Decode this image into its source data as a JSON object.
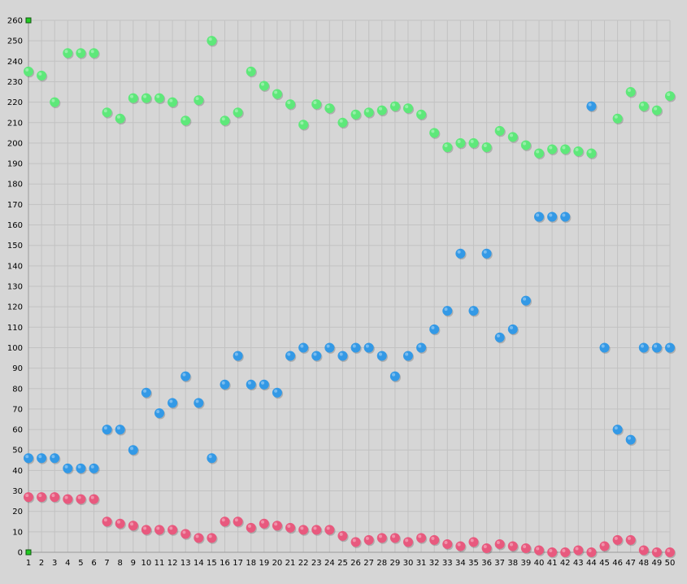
{
  "chart_data": {
    "type": "scatter",
    "title": "",
    "xlabel": "",
    "ylabel": "",
    "xlim": [
      1,
      50
    ],
    "ylim": [
      0,
      260
    ],
    "y_tick_step": 10,
    "grid": true,
    "legend": "none",
    "x": [
      1,
      2,
      3,
      4,
      5,
      6,
      7,
      8,
      9,
      10,
      11,
      12,
      13,
      14,
      15,
      16,
      17,
      18,
      19,
      20,
      21,
      22,
      23,
      24,
      25,
      26,
      27,
      28,
      29,
      30,
      31,
      32,
      33,
      34,
      35,
      36,
      37,
      38,
      39,
      40,
      41,
      42,
      43,
      44,
      45,
      46,
      47,
      48,
      49,
      50
    ],
    "series": [
      {
        "color": "#5ee87a",
        "values": [
          235,
          233,
          220,
          244,
          244,
          244,
          215,
          212,
          222,
          222,
          222,
          220,
          211,
          221,
          250,
          211,
          215,
          235,
          228,
          224,
          219,
          209,
          219,
          217,
          210,
          214,
          215,
          216,
          218,
          217,
          214,
          205,
          198,
          200,
          200,
          198,
          206,
          203,
          199,
          195,
          197,
          197,
          196,
          195,
          null,
          212,
          225,
          218,
          216,
          223
        ]
      },
      {
        "color": "#3399e6",
        "values": [
          46,
          46,
          46,
          41,
          41,
          41,
          60,
          60,
          50,
          78,
          68,
          73,
          86,
          73,
          46,
          82,
          96,
          82,
          82,
          78,
          96,
          100,
          96,
          100,
          96,
          100,
          100,
          96,
          86,
          96,
          100,
          109,
          118,
          146,
          118,
          146,
          105,
          109,
          123,
          164,
          164,
          164,
          null,
          218,
          100,
          60,
          55,
          100,
          100,
          100
        ]
      },
      {
        "color": "#e8597e",
        "values": [
          27,
          27,
          27,
          26,
          26,
          26,
          15,
          14,
          13,
          11,
          11,
          11,
          9,
          7,
          7,
          15,
          15,
          12,
          14,
          13,
          12,
          11,
          11,
          11,
          8,
          5,
          6,
          7,
          7,
          5,
          7,
          6,
          4,
          3,
          5,
          2,
          4,
          3,
          2,
          1,
          0,
          0,
          1,
          0,
          3,
          6,
          6,
          1,
          0,
          0
        ]
      }
    ],
    "markers": [
      {
        "x": 1,
        "y": 260,
        "color": "#22cc22"
      },
      {
        "x": 1,
        "y": 0,
        "color": "#22cc22"
      }
    ]
  }
}
